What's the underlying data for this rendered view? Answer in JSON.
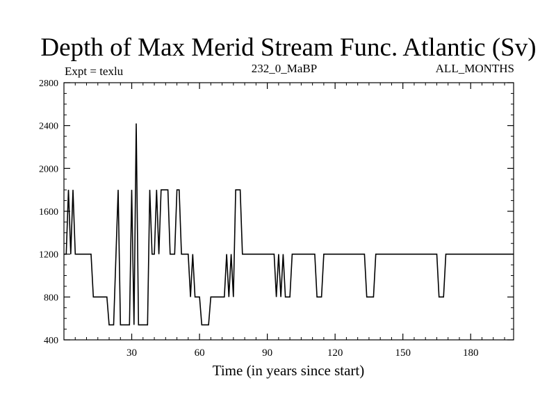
{
  "chart_data": {
    "type": "line",
    "title": "Depth of Max Merid Stream Func. Atlantic (Sv)",
    "subtitle_left": "Expt = texlu",
    "subtitle_center": "232_0_MaBP",
    "subtitle_right": "ALL_MONTHS",
    "xlabel": "Time (in years since start)",
    "ylabel": "",
    "xlim": [
      0,
      199
    ],
    "ylim": [
      400,
      2800
    ],
    "x_ticks": [
      30,
      60,
      90,
      120,
      150,
      180
    ],
    "y_ticks": [
      400,
      800,
      1200,
      1600,
      2000,
      2400,
      2800
    ],
    "x_tick_labels": [
      "30",
      "60",
      "90",
      "120",
      "150",
      "180"
    ],
    "y_tick_labels": [
      "400",
      "800",
      "1200",
      "1600",
      "2000",
      "2400",
      "2800"
    ],
    "line_color": "#000000",
    "series": [
      {
        "name": "depth",
        "points": [
          [
            0,
            1200
          ],
          [
            1,
            1200
          ],
          [
            2,
            1800
          ],
          [
            3,
            1200
          ],
          [
            4,
            1800
          ],
          [
            5,
            1200
          ],
          [
            12,
            1200
          ],
          [
            13,
            800
          ],
          [
            19,
            800
          ],
          [
            20,
            540
          ],
          [
            22,
            540
          ],
          [
            24,
            1800
          ],
          [
            25,
            540
          ],
          [
            29,
            540
          ],
          [
            30,
            1800
          ],
          [
            31,
            540
          ],
          [
            32,
            2420
          ],
          [
            33,
            540
          ],
          [
            37,
            540
          ],
          [
            38,
            1800
          ],
          [
            39,
            1200
          ],
          [
            40,
            1200
          ],
          [
            41,
            1800
          ],
          [
            42,
            1200
          ],
          [
            43,
            1800
          ],
          [
            46,
            1800
          ],
          [
            47,
            1200
          ],
          [
            49,
            1200
          ],
          [
            50,
            1800
          ],
          [
            51,
            1800
          ],
          [
            52,
            1200
          ],
          [
            55,
            1200
          ],
          [
            56,
            800
          ],
          [
            57,
            1200
          ],
          [
            58,
            800
          ],
          [
            60,
            800
          ],
          [
            61,
            540
          ],
          [
            64,
            540
          ],
          [
            65,
            800
          ],
          [
            71,
            800
          ],
          [
            72,
            1200
          ],
          [
            73,
            800
          ],
          [
            74,
            1200
          ],
          [
            75,
            800
          ],
          [
            76,
            1800
          ],
          [
            78,
            1800
          ],
          [
            79,
            1200
          ],
          [
            93,
            1200
          ],
          [
            94,
            800
          ],
          [
            95,
            1200
          ],
          [
            96,
            800
          ],
          [
            97,
            1200
          ],
          [
            98,
            800
          ],
          [
            100,
            800
          ],
          [
            101,
            1200
          ],
          [
            111,
            1200
          ],
          [
            112,
            800
          ],
          [
            114,
            800
          ],
          [
            115,
            1200
          ],
          [
            133,
            1200
          ],
          [
            134,
            800
          ],
          [
            137,
            800
          ],
          [
            138,
            1200
          ],
          [
            165,
            1200
          ],
          [
            166,
            800
          ],
          [
            168,
            800
          ],
          [
            169,
            1200
          ],
          [
            199,
            1200
          ]
        ]
      }
    ]
  }
}
